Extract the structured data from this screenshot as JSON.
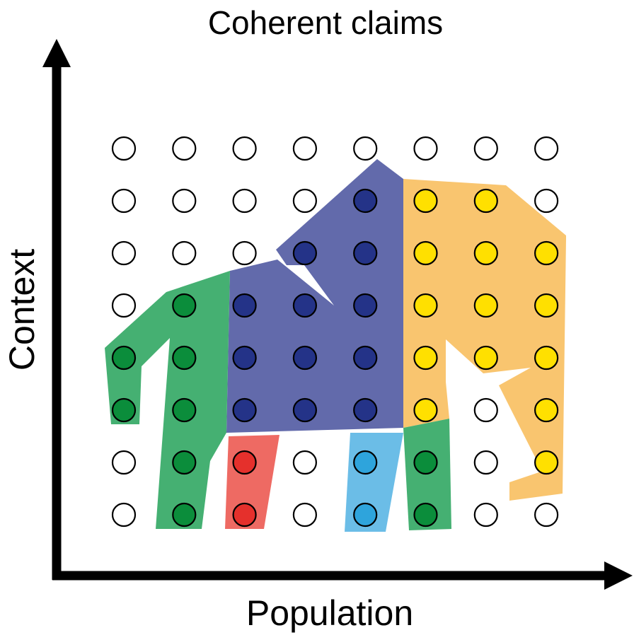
{
  "title": "Coherent claims",
  "axes": {
    "x_label": "Population",
    "y_label": "Context"
  },
  "colors": {
    "blue_region": "#626aab",
    "orange_region": "#f9c56f",
    "green_region": "#45b072",
    "red_region": "#ee6a63",
    "lightblue_region": "#6bbde7",
    "dot_empty": "#ffffff",
    "dot_blue": "#243388",
    "dot_yellow": "#ffe000",
    "dot_green": "#0b8d3b",
    "dot_red": "#e5302c",
    "dot_lightblue": "#2ea4dc"
  },
  "grid": {
    "columns": 8,
    "rows": 8,
    "cells": [
      [
        "empty",
        "empty",
        "empty",
        "empty",
        "empty",
        "empty",
        "empty",
        "empty"
      ],
      [
        "empty",
        "empty",
        "empty",
        "empty",
        "blue",
        "yellow",
        "yellow",
        "empty"
      ],
      [
        "empty",
        "empty",
        "empty",
        "blue",
        "blue",
        "yellow",
        "yellow",
        "yellow"
      ],
      [
        "empty",
        "green",
        "blue",
        "blue",
        "blue",
        "yellow",
        "yellow",
        "yellow"
      ],
      [
        "green",
        "green",
        "blue",
        "blue",
        "blue",
        "yellow",
        "yellow",
        "yellow"
      ],
      [
        "green",
        "green",
        "blue",
        "blue",
        "blue",
        "yellow",
        "empty",
        "yellow"
      ],
      [
        "empty",
        "green",
        "red",
        "empty",
        "lightblue",
        "green",
        "empty",
        "yellow"
      ],
      [
        "empty",
        "green",
        "red",
        "empty",
        "lightblue",
        "green",
        "empty",
        "empty"
      ]
    ]
  }
}
